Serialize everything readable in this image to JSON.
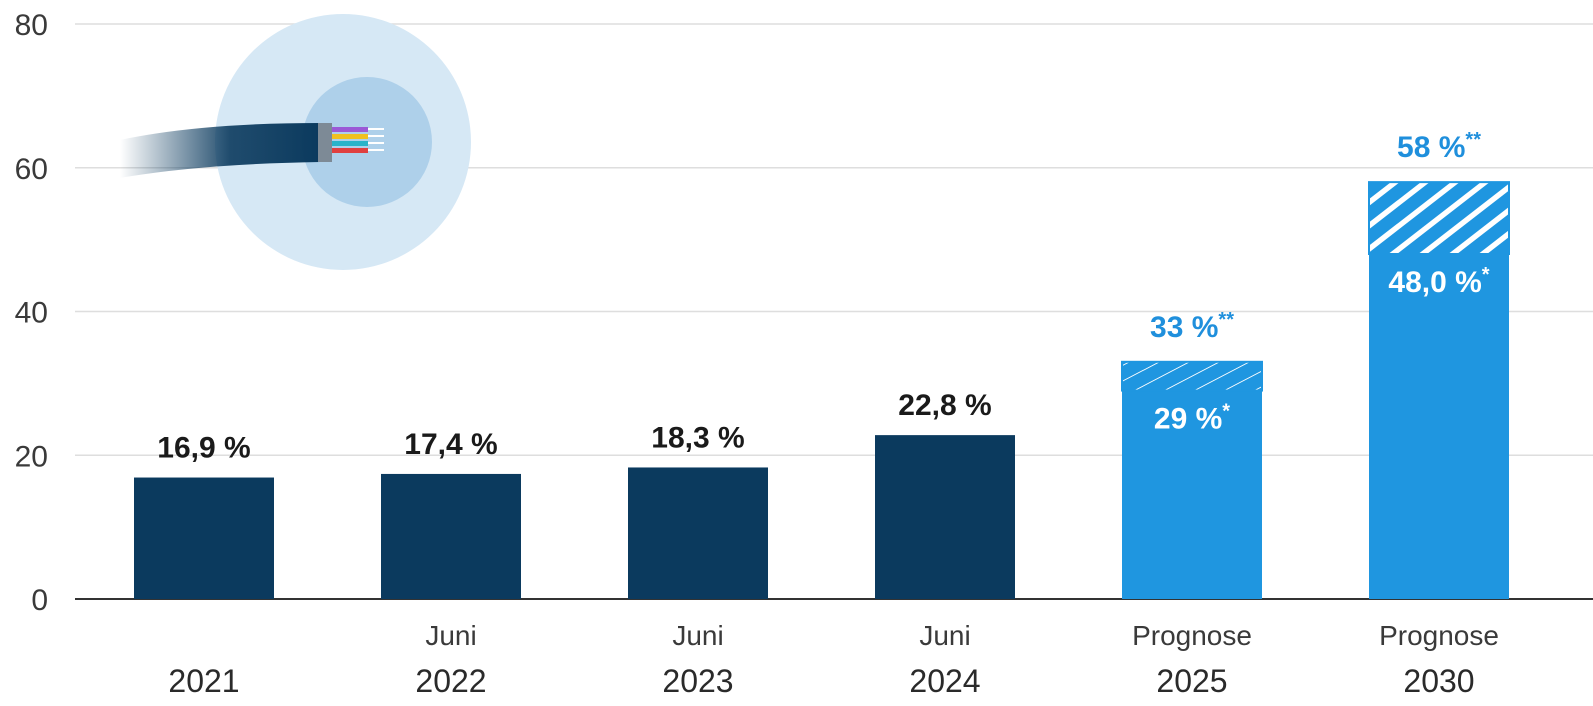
{
  "colors": {
    "actual": "#0b3a5e",
    "forecast": "#1f96e0",
    "forecast_label": "#1f8fdc",
    "label_dark": "#1a1a1a",
    "grid": "#dedede",
    "axis": "#333333",
    "halo_outer": "#d6e8f5",
    "halo_inner": "#aed0ea"
  },
  "decoration": {
    "icon": "fiber-optic-cable-icon"
  },
  "chart_data": {
    "type": "bar",
    "ylim": [
      0,
      80
    ],
    "yticks": [
      "0",
      "20",
      "40",
      "60",
      "80"
    ],
    "grid": true,
    "categories": [
      {
        "sub": "",
        "main": "2021"
      },
      {
        "sub": "Juni",
        "main": "2022"
      },
      {
        "sub": "Juni",
        "main": "2023"
      },
      {
        "sub": "Juni",
        "main": "2024"
      },
      {
        "sub": "Prognose",
        "main": "2025"
      },
      {
        "sub": "Prognose",
        "main": "2030"
      }
    ],
    "bars": [
      {
        "value": 16.9,
        "label": "16,9 %",
        "kind": "actual"
      },
      {
        "value": 17.4,
        "label": "17,4 %",
        "kind": "actual"
      },
      {
        "value": 18.3,
        "label": "18,3 %",
        "kind": "actual"
      },
      {
        "value": 22.8,
        "label": "22,8 %",
        "kind": "actual"
      },
      {
        "value": 29,
        "label": "29 %",
        "label_sup": "*",
        "kind": "forecast",
        "upper_value": 33,
        "upper_label": "33 %",
        "upper_label_sup": "**"
      },
      {
        "value": 48.0,
        "label": "48,0 %",
        "label_sup": "*",
        "kind": "forecast",
        "upper_value": 58,
        "upper_label": "58 %",
        "upper_label_sup": "**"
      }
    ]
  }
}
